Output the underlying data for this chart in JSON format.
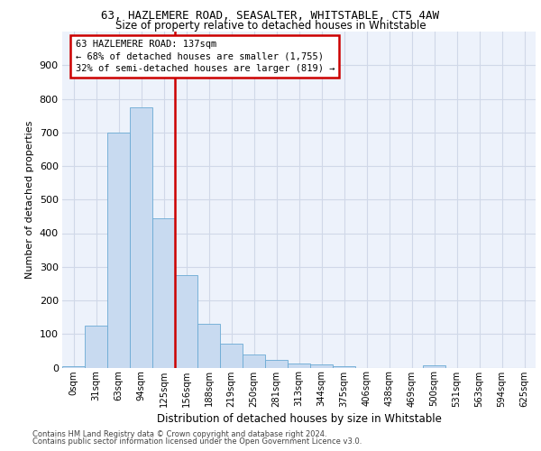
{
  "title1": "63, HAZLEMERE ROAD, SEASALTER, WHITSTABLE, CT5 4AW",
  "title2": "Size of property relative to detached houses in Whitstable",
  "xlabel": "Distribution of detached houses by size in Whitstable",
  "ylabel": "Number of detached properties",
  "bar_labels": [
    "0sqm",
    "31sqm",
    "63sqm",
    "94sqm",
    "125sqm",
    "156sqm",
    "188sqm",
    "219sqm",
    "250sqm",
    "281sqm",
    "313sqm",
    "344sqm",
    "375sqm",
    "406sqm",
    "438sqm",
    "469sqm",
    "500sqm",
    "531sqm",
    "563sqm",
    "594sqm",
    "625sqm"
  ],
  "bar_values": [
    5,
    125,
    700,
    775,
    445,
    275,
    130,
    70,
    38,
    22,
    12,
    9,
    5,
    0,
    0,
    0,
    8,
    0,
    0,
    0,
    0
  ],
  "bar_color": "#c8daf0",
  "bar_edge_color": "#6aaad4",
  "annotation_title": "63 HAZLEMERE ROAD: 137sqm",
  "annotation_line1": "← 68% of detached houses are smaller (1,755)",
  "annotation_line2": "32% of semi-detached houses are larger (819) →",
  "vline_color": "#cc0000",
  "vline_x": 4.5,
  "ylim": [
    0,
    1000
  ],
  "yticks": [
    0,
    100,
    200,
    300,
    400,
    500,
    600,
    700,
    800,
    900
  ],
  "footer1": "Contains HM Land Registry data © Crown copyright and database right 2024.",
  "footer2": "Contains public sector information licensed under the Open Government Licence v3.0.",
  "bg_color": "#edf2fb",
  "grid_color": "#d0d8e8"
}
